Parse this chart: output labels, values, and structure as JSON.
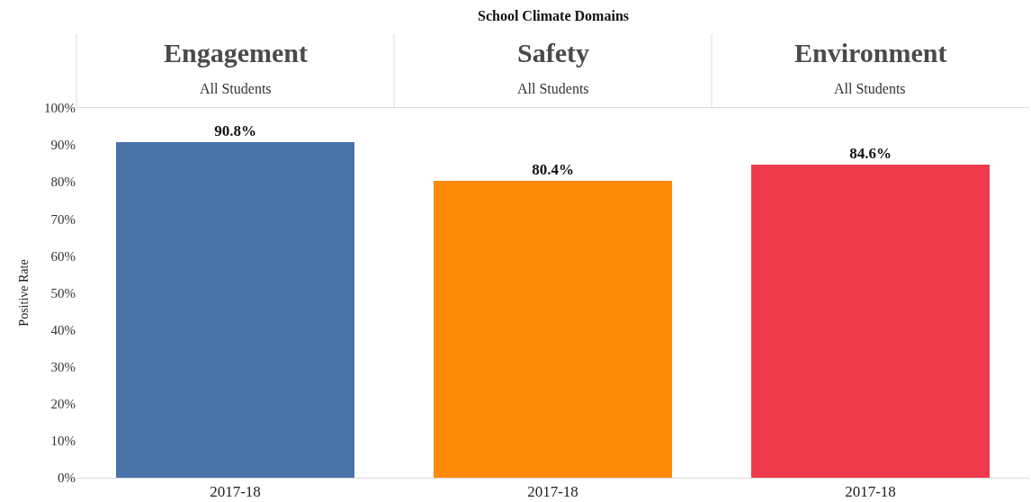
{
  "chart_data": [
    {
      "type": "bar",
      "title": "Engagement",
      "subtitle": "All Students",
      "ylabel": "Positive Rate",
      "annotations": [
        "School Climate Domains"
      ],
      "categories": [
        "2017-18"
      ],
      "values": [
        90.8
      ],
      "value_labels": [
        "90.8%"
      ],
      "colors": [
        "#4a74a8"
      ],
      "ylim": [
        0,
        100
      ],
      "yticks": [
        {
          "value": 0,
          "label": "0%"
        },
        {
          "value": 10,
          "label": "10%"
        },
        {
          "value": 20,
          "label": "20%"
        },
        {
          "value": 30,
          "label": "30%"
        },
        {
          "value": 40,
          "label": "40%"
        },
        {
          "value": 50,
          "label": "50%"
        },
        {
          "value": 60,
          "label": "60%"
        },
        {
          "value": 70,
          "label": "70%"
        },
        {
          "value": 80,
          "label": "80%"
        },
        {
          "value": 90,
          "label": "90%"
        },
        {
          "value": 100,
          "label": "100%"
        }
      ],
      "grid": false,
      "legend": false
    },
    {
      "type": "bar",
      "title": "Safety",
      "subtitle": "All Students",
      "categories": [
        "2017-18"
      ],
      "values": [
        80.4
      ],
      "value_labels": [
        "80.4%"
      ],
      "colors": [
        "#fe8a07"
      ],
      "ylim": [
        0,
        100
      ],
      "tick_labels": "x",
      "grid": false,
      "legend": false
    },
    {
      "type": "bar",
      "title": "Environment",
      "subtitle": "All Students",
      "categories": [
        "2017-18"
      ],
      "values": [
        84.6
      ],
      "value_labels": [
        "84.6%"
      ],
      "colors": [
        "#ee3a4c"
      ],
      "ylim": [
        0,
        100
      ],
      "tick_labels": "x",
      "grid": false,
      "legend": false
    }
  ]
}
